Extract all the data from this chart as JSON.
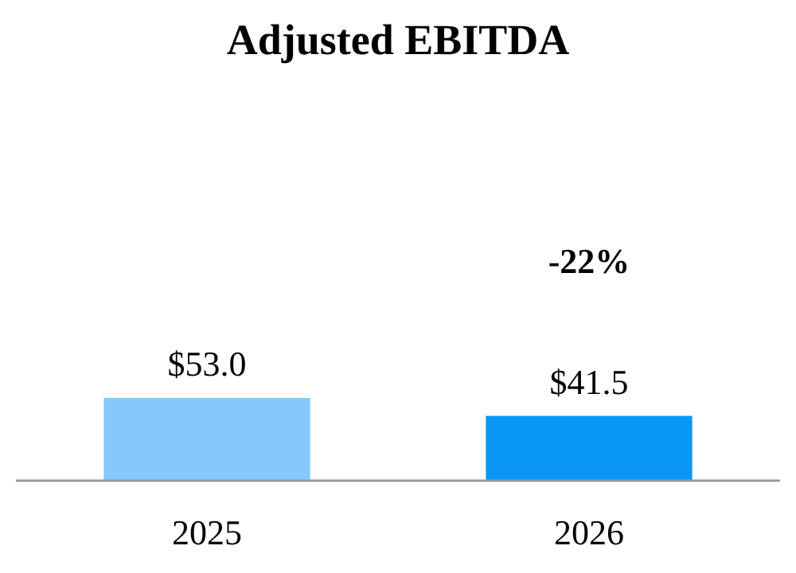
{
  "chart_data": {
    "type": "bar",
    "title": "Adjusted EBITDA",
    "categories": [
      "2025",
      "2026"
    ],
    "values": [
      53.0,
      41.5
    ],
    "colors": [
      "#87c8fb",
      "#0a96f5"
    ],
    "value_labels": [
      "$53.0",
      "$41.5"
    ],
    "annotations": [
      "-22%"
    ]
  }
}
